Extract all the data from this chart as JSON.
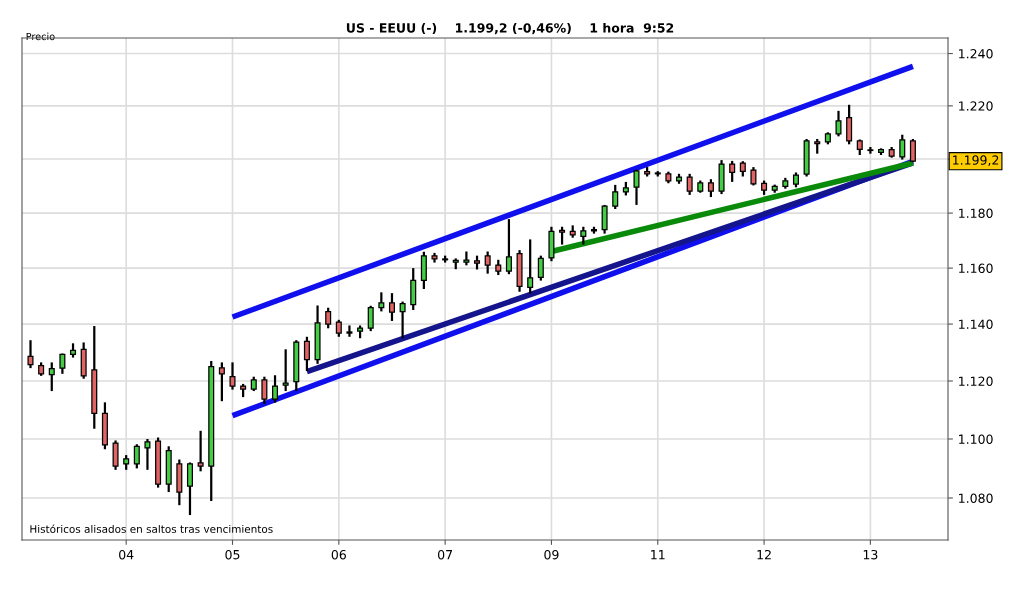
{
  "chart_data": {
    "type": "candlestick",
    "title": "US - EEUU (-)    1.199,2 (-0,46%)    1 hora  9:52",
    "ylabel": "Precio",
    "categories": [
      null,
      null,
      null,
      null,
      null,
      null,
      null,
      null,
      null,
      "04",
      null,
      null,
      null,
      null,
      null,
      null,
      null,
      null,
      null,
      "05",
      null,
      null,
      null,
      null,
      null,
      null,
      null,
      null,
      null,
      "06",
      null,
      null,
      null,
      null,
      null,
      null,
      null,
      null,
      null,
      "07",
      null,
      null,
      null,
      null,
      null,
      null,
      null,
      null,
      null,
      "09",
      null,
      null,
      null,
      null,
      null,
      null,
      null,
      null,
      null,
      "11",
      null,
      null,
      null,
      null,
      null,
      null,
      null,
      null,
      null,
      "12",
      null,
      null,
      null,
      null,
      null,
      null,
      null,
      null,
      null,
      "13",
      null,
      null,
      null,
      null
    ],
    "ohlc": [
      [
        1128.6,
        1134.3,
        1124.5,
        1125.7
      ],
      [
        1125.4,
        1126.5,
        1121.8,
        1122.5
      ],
      [
        1122.2,
        1126.5,
        1116.5,
        1124.3
      ],
      [
        1124.5,
        1129.6,
        1122.5,
        1129.3
      ],
      [
        1129.3,
        1133.2,
        1128.2,
        1130.7
      ],
      [
        1131.1,
        1133.5,
        1120.8,
        1121.8
      ],
      [
        1123.9,
        1139.3,
        1103.5,
        1108.8
      ],
      [
        1108.8,
        1112.6,
        1096.5,
        1098.0
      ],
      [
        1098.6,
        1099.5,
        1089.5,
        1090.8
      ],
      [
        1091.5,
        1094.5,
        1089.5,
        1093.2
      ],
      [
        1091.5,
        1098.2,
        1090.0,
        1097.5
      ],
      [
        1097.0,
        1100.0,
        1089.5,
        1099.0
      ],
      [
        1099.3,
        1100.5,
        1083.5,
        1084.7
      ],
      [
        1084.7,
        1097.5,
        1082.0,
        1096.0
      ],
      [
        1091.5,
        1093.0,
        1077.6,
        1082.0
      ],
      [
        1084.0,
        1092.0,
        1074.3,
        1091.5
      ],
      [
        1091.9,
        1102.8,
        1089.0,
        1090.8
      ],
      [
        1090.8,
        1127.0,
        1079.0,
        1125.0
      ],
      [
        1124.6,
        1126.5,
        1113.0,
        1122.5
      ],
      [
        1121.5,
        1126.5,
        1117.0,
        1118.2
      ],
      [
        1118.2,
        1119.0,
        1114.4,
        1117.2
      ],
      [
        1117.2,
        1121.5,
        1116.5,
        1120.4
      ],
      [
        1120.4,
        1121.5,
        1112.0,
        1113.7
      ],
      [
        1113.7,
        1122.0,
        1112.5,
        1118.2
      ],
      [
        1118.6,
        1131.1,
        1116.5,
        1119.3
      ],
      [
        1119.8,
        1134.3,
        1116.5,
        1133.6
      ],
      [
        1133.9,
        1135.5,
        1123.5,
        1127.5
      ],
      [
        1127.5,
        1146.6,
        1126.0,
        1140.4
      ],
      [
        1144.4,
        1145.8,
        1138.5,
        1140.0
      ],
      [
        1140.7,
        1141.5,
        1135.5,
        1136.8
      ],
      [
        1136.8,
        1139.5,
        1135.5,
        1137.2
      ],
      [
        1137.5,
        1139.5,
        1135.0,
        1138.6
      ],
      [
        1138.6,
        1146.5,
        1137.5,
        1145.8
      ],
      [
        1145.8,
        1151.3,
        1144.5,
        1147.5
      ],
      [
        1147.5,
        1151.0,
        1141.1,
        1144.2
      ],
      [
        1144.4,
        1148.0,
        1135.0,
        1147.3
      ],
      [
        1146.9,
        1160.0,
        1145.0,
        1155.6
      ],
      [
        1155.6,
        1165.9,
        1152.5,
        1164.4
      ],
      [
        1164.4,
        1165.5,
        1162.0,
        1163.3
      ],
      [
        1163.3,
        1164.5,
        1162.0,
        1163.0
      ],
      [
        1162.2,
        1163.5,
        1159.6,
        1162.8
      ],
      [
        1162.2,
        1166.0,
        1161.0,
        1162.9
      ],
      [
        1162.6,
        1164.5,
        1159.5,
        1161.8
      ],
      [
        1164.4,
        1166.0,
        1158.0,
        1161.1
      ],
      [
        1161.1,
        1163.0,
        1157.5,
        1158.9
      ],
      [
        1158.9,
        1177.8,
        1157.8,
        1164.1
      ],
      [
        1165.2,
        1166.5,
        1151.5,
        1153.4
      ],
      [
        1153.1,
        1170.4,
        1150.9,
        1156.5
      ],
      [
        1156.7,
        1164.5,
        1155.5,
        1163.5
      ],
      [
        1163.7,
        1175.0,
        1162.5,
        1173.3
      ],
      [
        1173.7,
        1175.0,
        1168.5,
        1173.0
      ],
      [
        1173.3,
        1175.5,
        1171.0,
        1172.0
      ],
      [
        1171.5,
        1175.0,
        1168.5,
        1173.5
      ],
      [
        1173.5,
        1175.0,
        1172.5,
        1174.0
      ],
      [
        1174.0,
        1183.0,
        1172.5,
        1182.6
      ],
      [
        1182.6,
        1190.4,
        1181.5,
        1187.8
      ],
      [
        1187.8,
        1191.5,
        1186.5,
        1189.3
      ],
      [
        1189.6,
        1196.0,
        1183.0,
        1195.6
      ],
      [
        1195.3,
        1197.0,
        1193.5,
        1194.5
      ],
      [
        1194.5,
        1195.5,
        1193.5,
        1194.8
      ],
      [
        1194.5,
        1195.3,
        1191.0,
        1191.9
      ],
      [
        1191.9,
        1194.5,
        1190.8,
        1193.3
      ],
      [
        1193.3,
        1194.5,
        1186.7,
        1188.1
      ],
      [
        1188.1,
        1192.0,
        1187.5,
        1191.1
      ],
      [
        1191.1,
        1192.5,
        1185.9,
        1188.1
      ],
      [
        1188.1,
        1199.6,
        1187.0,
        1198.1
      ],
      [
        1198.1,
        1199.3,
        1191.5,
        1195.0
      ],
      [
        1198.5,
        1199.2,
        1193.5,
        1195.4
      ],
      [
        1195.9,
        1197.0,
        1190.2,
        1190.8
      ],
      [
        1191.0,
        1192.0,
        1186.7,
        1188.5
      ],
      [
        1188.5,
        1190.5,
        1187.5,
        1189.8
      ],
      [
        1189.8,
        1193.0,
        1189.0,
        1191.9
      ],
      [
        1190.7,
        1195.0,
        1189.5,
        1194.0
      ],
      [
        1194.4,
        1207.5,
        1193.5,
        1206.8
      ],
      [
        1206.4,
        1207.5,
        1202.0,
        1205.8
      ],
      [
        1206.4,
        1210.0,
        1205.5,
        1209.4
      ],
      [
        1209.4,
        1218.1,
        1208.5,
        1214.3
      ],
      [
        1215.5,
        1220.4,
        1205.5,
        1206.8
      ],
      [
        1206.8,
        1207.3,
        1201.5,
        1203.6
      ],
      [
        1203.4,
        1204.5,
        1202.0,
        1203.2
      ],
      [
        1202.5,
        1204.0,
        1201.5,
        1203.5
      ],
      [
        1203.5,
        1204.5,
        1200.5,
        1201.1
      ],
      [
        1200.8,
        1209.1,
        1199.8,
        1207.2
      ],
      [
        1206.8,
        1207.5,
        1198.8,
        1199.2
      ]
    ],
    "colors": [
      "#e06464",
      "#e06464",
      "#44cc44",
      "#44cc44",
      "#44cc44",
      "#e06464",
      "#e06464",
      "#e06464",
      "#e06464",
      "#44cc44",
      "#44cc44",
      "#44cc44",
      "#e06464",
      "#44cc44",
      "#e06464",
      "#44cc44",
      "#e06464",
      "#44cc44",
      "#e06464",
      "#e06464",
      "#e06464",
      "#44cc44",
      "#e06464",
      "#44cc44",
      "#44cc44",
      "#44cc44",
      "#e06464",
      "#44cc44",
      "#e06464",
      "#e06464",
      "#44cc44",
      "#44cc44",
      "#44cc44",
      "#44cc44",
      "#e06464",
      "#44cc44",
      "#44cc44",
      "#44cc44",
      "#e06464",
      "#e06464",
      "#44cc44",
      "#44cc44",
      "#e06464",
      "#e06464",
      "#e06464",
      "#44cc44",
      "#e06464",
      "#44cc44",
      "#44cc44",
      "#44cc44",
      "#e06464",
      "#e06464",
      "#44cc44",
      "#44cc44",
      "#44cc44",
      "#44cc44",
      "#44cc44",
      "#44cc44",
      "#e06464",
      "#44cc44",
      "#e06464",
      "#44cc44",
      "#e06464",
      "#44cc44",
      "#e06464",
      "#44cc44",
      "#e06464",
      "#e06464",
      "#e06464",
      "#e06464",
      "#44cc44",
      "#44cc44",
      "#44cc44",
      "#44cc44",
      "#e06464",
      "#44cc44",
      "#44cc44",
      "#e06464",
      "#e06464",
      "#e06464",
      "#44cc44",
      "#e06464",
      "#44cc44",
      "#e06464"
    ],
    "series": [
      {
        "type": "line",
        "color": "#1010ee",
        "values": [
          null,
          null,
          null,
          null,
          null,
          null,
          null,
          null,
          null,
          null,
          null,
          null,
          null,
          null,
          null,
          null,
          null,
          null,
          null,
          1142.5,
          null,
          null,
          null,
          null,
          null,
          null,
          null,
          null,
          null,
          null,
          null,
          null,
          null,
          null,
          null,
          null,
          null,
          null,
          null,
          null,
          null,
          null,
          null,
          null,
          null,
          null,
          null,
          null,
          null,
          null,
          null,
          null,
          null,
          null,
          null,
          null,
          null,
          null,
          null,
          null,
          null,
          null,
          null,
          null,
          null,
          null,
          null,
          null,
          null,
          null,
          null,
          null,
          null,
          null,
          null,
          null,
          null,
          null,
          null,
          null,
          null,
          null,
          null,
          1235.1
        ]
      },
      {
        "type": "line",
        "color": "#1010ee",
        "values": [
          null,
          null,
          null,
          null,
          null,
          null,
          null,
          null,
          null,
          null,
          null,
          null,
          null,
          null,
          null,
          null,
          null,
          null,
          null,
          1108.0,
          null,
          null,
          null,
          null,
          null,
          null,
          null,
          null,
          null,
          null,
          null,
          null,
          null,
          null,
          null,
          null,
          null,
          null,
          null,
          null,
          null,
          null,
          null,
          null,
          null,
          null,
          null,
          null,
          null,
          null,
          null,
          null,
          null,
          null,
          null,
          null,
          null,
          null,
          null,
          null,
          null,
          null,
          null,
          null,
          null,
          null,
          null,
          null,
          null,
          null,
          null,
          null,
          null,
          null,
          null,
          null,
          null,
          null,
          null,
          null,
          null,
          null,
          null,
          1199.1
        ]
      },
      {
        "type": "line",
        "color": "#14148c",
        "values": [
          null,
          null,
          null,
          null,
          null,
          null,
          null,
          null,
          null,
          null,
          null,
          null,
          null,
          null,
          null,
          null,
          null,
          null,
          null,
          null,
          null,
          null,
          null,
          null,
          null,
          null,
          1123.3,
          null,
          null,
          null,
          null,
          null,
          null,
          null,
          null,
          null,
          null,
          null,
          null,
          null,
          null,
          null,
          null,
          null,
          null,
          null,
          null,
          null,
          null,
          null,
          null,
          null,
          null,
          null,
          null,
          null,
          null,
          null,
          null,
          null,
          null,
          null,
          null,
          null,
          null,
          null,
          null,
          null,
          null,
          null,
          null,
          null,
          null,
          null,
          null,
          null,
          null,
          null,
          null,
          null,
          null,
          null,
          null,
          1198.6
        ]
      },
      {
        "type": "line",
        "color": "#0a8a0a",
        "values": [
          null,
          null,
          null,
          null,
          null,
          null,
          null,
          null,
          null,
          null,
          null,
          null,
          null,
          null,
          null,
          null,
          null,
          null,
          null,
          null,
          null,
          null,
          null,
          null,
          null,
          null,
          null,
          null,
          null,
          null,
          null,
          null,
          null,
          null,
          null,
          null,
          null,
          null,
          null,
          null,
          null,
          null,
          null,
          null,
          null,
          null,
          null,
          null,
          null,
          1166.0,
          null,
          null,
          null,
          null,
          null,
          null,
          null,
          null,
          null,
          null,
          null,
          null,
          null,
          null,
          null,
          null,
          null,
          null,
          null,
          null,
          null,
          null,
          null,
          null,
          null,
          null,
          null,
          null,
          null,
          null,
          null,
          null,
          null,
          1198.5
        ]
      }
    ],
    "log": true,
    "ylim": [
      1066,
      1246
    ],
    "yticks": [
      {
        "value": 1080,
        "label": "1.080"
      },
      {
        "value": 1100,
        "label": "1.100"
      },
      {
        "value": 1120,
        "label": "1.120"
      },
      {
        "value": 1140,
        "label": "1.140"
      },
      {
        "value": 1160,
        "label": "1.160"
      },
      {
        "value": 1180,
        "label": "1.180"
      },
      {
        "value": 1200,
        "label": null
      },
      {
        "value": 1220,
        "label": "1.220"
      },
      {
        "value": 1240,
        "label": "1.240"
      }
    ],
    "grid": true,
    "annotations": [
      "1.199,2",
      "Históricos alisados en saltos tras vencimientos"
    ]
  }
}
